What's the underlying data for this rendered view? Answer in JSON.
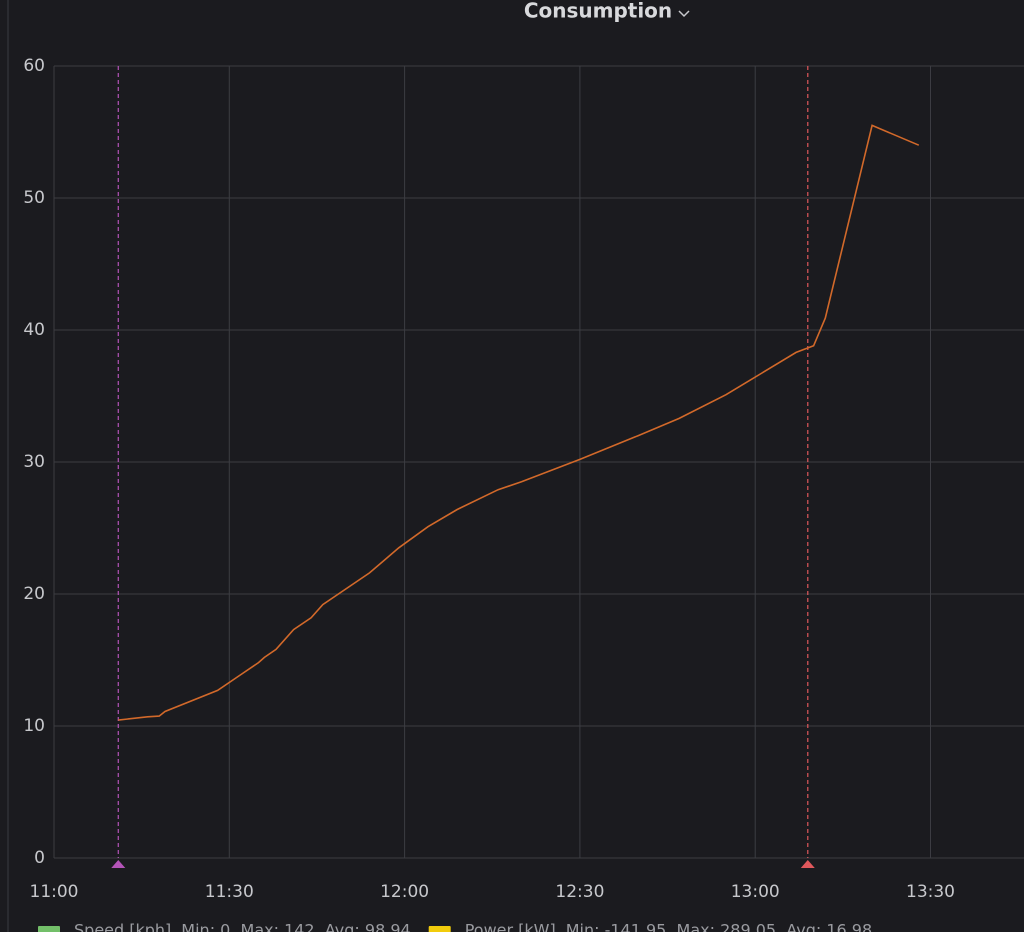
{
  "chart_data": {
    "type": "line",
    "title": "Consumption",
    "x": [
      "11:11",
      "11:16",
      "11:18",
      "11:19",
      "11:28",
      "11:32",
      "11:35",
      "11:36",
      "11:38",
      "11:41",
      "11:44",
      "11:46",
      "11:54",
      "11:59",
      "12:04",
      "12:09",
      "12:16",
      "12:20",
      "12:30",
      "12:40",
      "12:47",
      "12:55",
      "13:07",
      "13:10",
      "13:12",
      "13:20",
      "13:28"
    ],
    "series": [
      {
        "color": "#d2692a",
        "values": [
          10.45,
          10.7,
          10.75,
          11.1,
          12.7,
          13.9,
          14.8,
          15.2,
          15.8,
          17.3,
          18.2,
          19.2,
          21.6,
          23.5,
          25.1,
          26.4,
          27.9,
          28.5,
          30.2,
          32.0,
          33.3,
          35.1,
          38.3,
          38.8,
          40.9,
          55.5,
          54.0
        ]
      }
    ],
    "xlim": [
      "11:00",
      "13:46"
    ],
    "xticks": [
      "11:00",
      "11:30",
      "12:00",
      "12:30",
      "13:00",
      "13:30"
    ],
    "ylim": [
      0,
      60
    ],
    "yticks": [
      0,
      10,
      20,
      30,
      40,
      50,
      60
    ],
    "grid": true,
    "annotations": [
      {
        "x": "11:11",
        "color": "#b454b8"
      },
      {
        "x": "13:09",
        "color": "#e0585c"
      }
    ],
    "legend": [
      {
        "name": "Speed [kph]",
        "color": "#73bf69",
        "stats": "Min: 0  Max: 142  Avg: 98.94"
      },
      {
        "name": "Power [kW]",
        "color": "#f2cc0c",
        "stats": "Min: -141.95  Max: 289.05  Avg: 16.98"
      }
    ]
  }
}
